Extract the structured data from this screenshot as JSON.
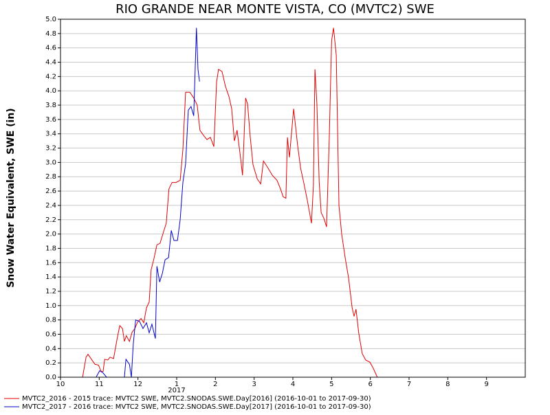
{
  "chart_data": {
    "type": "line",
    "title": "RIO GRANDE NEAR MONTE VISTA, CO (MVTC2) SWE",
    "y_label": "Snow Water Equivalent, SWE (in)",
    "x_annotation": "2017",
    "xlim": [
      0,
      12
    ],
    "xticks": [
      {
        "value": 0,
        "label": "10"
      },
      {
        "value": 1,
        "label": "11"
      },
      {
        "value": 2,
        "label": "12"
      },
      {
        "value": 3,
        "label": "1"
      },
      {
        "value": 4,
        "label": "2"
      },
      {
        "value": 5,
        "label": "3"
      },
      {
        "value": 6,
        "label": "4"
      },
      {
        "value": 7,
        "label": "5"
      },
      {
        "value": 8,
        "label": "6"
      },
      {
        "value": 9,
        "label": "7"
      },
      {
        "value": 10,
        "label": "8"
      },
      {
        "value": 11,
        "label": "9"
      }
    ],
    "ylim": [
      0,
      5
    ],
    "yticks": [
      {
        "value": 0,
        "label": "0.0"
      },
      {
        "value": 0.2,
        "label": "0.2"
      },
      {
        "value": 0.4,
        "label": "0.4"
      },
      {
        "value": 0.6,
        "label": "0.6"
      },
      {
        "value": 0.8,
        "label": "0.8"
      },
      {
        "value": 1,
        "label": "1.0"
      },
      {
        "value": 1.2,
        "label": "1.2"
      },
      {
        "value": 1.4,
        "label": "1.4"
      },
      {
        "value": 1.6,
        "label": "1.6"
      },
      {
        "value": 1.8,
        "label": "1.8"
      },
      {
        "value": 2,
        "label": "2.0"
      },
      {
        "value": 2.2,
        "label": "2.2"
      },
      {
        "value": 2.4,
        "label": "2.4"
      },
      {
        "value": 2.6,
        "label": "2.6"
      },
      {
        "value": 2.8,
        "label": "2.8"
      },
      {
        "value": 3,
        "label": "3.0"
      },
      {
        "value": 3.2,
        "label": "3.2"
      },
      {
        "value": 3.4,
        "label": "3.4"
      },
      {
        "value": 3.6,
        "label": "3.6"
      },
      {
        "value": 3.8,
        "label": "3.8"
      },
      {
        "value": 4,
        "label": "4.0"
      },
      {
        "value": 4.2,
        "label": "4.2"
      },
      {
        "value": 4.4,
        "label": "4.4"
      },
      {
        "value": 4.6,
        "label": "4.6"
      },
      {
        "value": 4.8,
        "label": "4.8"
      },
      {
        "value": 5,
        "label": "5.0"
      }
    ],
    "grid": true,
    "series": [
      {
        "name": "MVTC2_2016 - 2015 trace: MVTC2 SWE, MVTC2.SNODAS.SWE.Day[2016] (2016-10-01 to 2017-09-30)",
        "color": "#e00000",
        "x": [
          0.57,
          0.66,
          0.71,
          0.8,
          0.89,
          0.98,
          1.05,
          1.1,
          1.14,
          1.22,
          1.28,
          1.37,
          1.46,
          1.53,
          1.6,
          1.65,
          1.7,
          1.78,
          1.85,
          1.92,
          1.99,
          2.08,
          2.15,
          2.22,
          2.29,
          2.34,
          2.41,
          2.49,
          2.57,
          2.66,
          2.73,
          2.8,
          2.88,
          2.98,
          3.09,
          3.16,
          3.23,
          3.34,
          3.44,
          3.53,
          3.6,
          3.69,
          3.78,
          3.87,
          3.96,
          4.03,
          4.08,
          4.17,
          4.26,
          4.35,
          4.42,
          4.49,
          4.56,
          4.65,
          4.7,
          4.78,
          4.83,
          4.9,
          4.97,
          5.08,
          5.17,
          5.24,
          5.36,
          5.47,
          5.59,
          5.68,
          5.75,
          5.82,
          5.86,
          5.91,
          6.02,
          6.12,
          6.2,
          6.28,
          6.37,
          6.43,
          6.48,
          6.53,
          6.57,
          6.62,
          6.68,
          6.73,
          6.8,
          6.87,
          6.94,
          7,
          7.05,
          7.12,
          7.19,
          7.26,
          7.35,
          7.44,
          7.53,
          7.58,
          7.63,
          7.7,
          7.79,
          7.88,
          7.99,
          8.08,
          8.18
        ],
        "values": [
          0,
          0.28,
          0.32,
          0.25,
          0.18,
          0.17,
          0.08,
          0.08,
          0.25,
          0.24,
          0.28,
          0.26,
          0.53,
          0.72,
          0.68,
          0.5,
          0.58,
          0.5,
          0.63,
          0.68,
          0.77,
          0.82,
          0.76,
          0.97,
          1.05,
          1.5,
          1.65,
          1.85,
          1.87,
          2.03,
          2.15,
          2.63,
          2.72,
          2.72,
          2.75,
          3.18,
          3.98,
          3.98,
          3.9,
          3.8,
          3.45,
          3.38,
          3.32,
          3.35,
          3.22,
          4.12,
          4.3,
          4.27,
          4.06,
          3.92,
          3.75,
          3.3,
          3.45,
          3.06,
          2.82,
          3.9,
          3.82,
          3.35,
          2.97,
          2.77,
          2.7,
          3.02,
          2.92,
          2.82,
          2.75,
          2.63,
          2.52,
          2.5,
          3.35,
          3.07,
          3.75,
          3.25,
          2.92,
          2.72,
          2.48,
          2.3,
          2.15,
          2.68,
          4.3,
          3.82,
          2.72,
          2.3,
          2.22,
          2.1,
          3.35,
          4.7,
          4.88,
          4.5,
          2.4,
          2,
          1.67,
          1.38,
          0.97,
          0.85,
          0.95,
          0.62,
          0.33,
          0.24,
          0.21,
          0.12,
          0
        ]
      },
      {
        "name": "MVTC2_2017 - 2016 trace: MVTC2 SWE, MVTC2.SNODAS.SWE.Day[2017] (2016-10-01 to 2017-09-30)",
        "color": "#0000c8",
        "x": [
          0.92,
          1.01,
          1.1,
          1.19,
          1.54,
          1.65,
          1.69,
          1.78,
          1.83,
          1.88,
          1.94,
          2.04,
          2.13,
          2.22,
          2.29,
          2.36,
          2.45,
          2.49,
          2.56,
          2.63,
          2.7,
          2.79,
          2.86,
          2.93,
          3.02,
          3.09,
          3.16,
          3.23,
          3.3,
          3.37,
          3.44,
          3.51,
          3.55,
          3.59
        ],
        "values": [
          0,
          0.09,
          0.06,
          0,
          0,
          0,
          0.25,
          0.18,
          0,
          0.47,
          0.8,
          0.78,
          0.68,
          0.76,
          0.62,
          0.74,
          0.54,
          1.55,
          1.33,
          1.45,
          1.64,
          1.67,
          2.05,
          1.91,
          1.91,
          2.2,
          2.72,
          2.98,
          3.73,
          3.78,
          3.65,
          4.88,
          4.3,
          4.13
        ]
      }
    ]
  }
}
